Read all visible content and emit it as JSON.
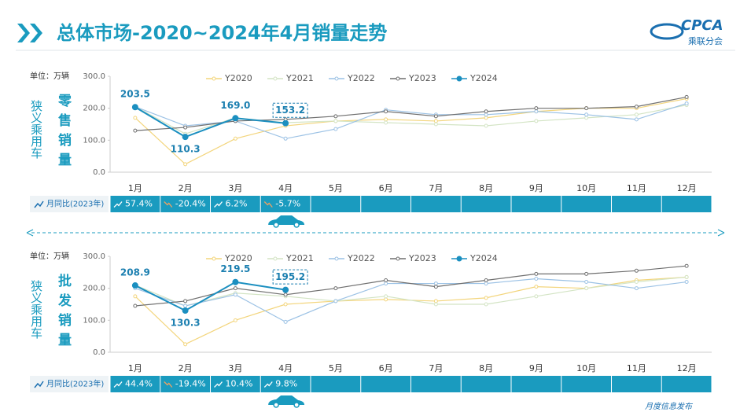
{
  "header": {
    "title": "总体市场-2020~2024年4月销量走势",
    "logo": "CPCA",
    "org": "乘联分会"
  },
  "footer": "月度信息发布",
  "chart_data": [
    {
      "type": "line",
      "unit": "单位：万辆",
      "segment": "狭义乘用车",
      "metric": "零售销量",
      "categories": [
        "1月",
        "2月",
        "3月",
        "4月",
        "5月",
        "6月",
        "7月",
        "8月",
        "9月",
        "10月",
        "11月",
        "12月"
      ],
      "ylim": [
        0,
        300
      ],
      "yticks": [
        {
          "value": 0,
          "label": "0.0"
        },
        {
          "value": 100,
          "label": "100.0"
        },
        {
          "value": 200,
          "label": "200.0"
        },
        {
          "value": 300,
          "label": "300.0"
        }
      ],
      "series": [
        {
          "name": "Y2020",
          "color": "#f3d57c",
          "values": [
            170,
            25,
            105,
            145,
            160,
            165,
            160,
            170,
            190,
            200,
            200,
            230
          ]
        },
        {
          "name": "Y2021",
          "color": "#d3e4c4",
          "values": [
            205,
            120,
            170,
            155,
            160,
            155,
            150,
            145,
            160,
            170,
            180,
            210
          ]
        },
        {
          "name": "Y2022",
          "color": "#9cc2e5",
          "values": [
            205,
            145,
            160,
            105,
            135,
            195,
            180,
            180,
            190,
            180,
            165,
            215
          ]
        },
        {
          "name": "Y2023",
          "color": "#6f6f6f",
          "values": [
            130,
            140,
            160,
            165,
            175,
            190,
            175,
            190,
            200,
            200,
            205,
            235
          ]
        },
        {
          "name": "Y2024",
          "color": "#1b8fc0",
          "values": [
            203.5,
            110.3,
            169.0,
            153.2,
            null,
            null,
            null,
            null,
            null,
            null,
            null,
            null
          ],
          "value_labels": [
            "203.5",
            "110.3",
            "169.0",
            "153.2",
            null,
            null,
            null,
            null,
            null,
            null,
            null,
            null
          ]
        }
      ],
      "yoy": {
        "label": "月同比(2023年)",
        "values": [
          57.4,
          -20.4,
          6.2,
          -5.7
        ],
        "value_labels": [
          "57.4%",
          "-20.4%",
          "6.2%",
          "-5.7%"
        ]
      }
    },
    {
      "type": "line",
      "unit": "单位：万辆",
      "segment": "狭义乘用车",
      "metric": "批发销量",
      "categories": [
        "1月",
        "2月",
        "3月",
        "4月",
        "5月",
        "6月",
        "7月",
        "8月",
        "9月",
        "10月",
        "11月",
        "12月"
      ],
      "ylim": [
        0,
        300
      ],
      "yticks": [
        {
          "value": 0,
          "label": "0.0"
        },
        {
          "value": 100,
          "label": "100.0"
        },
        {
          "value": 200,
          "label": "200.0"
        },
        {
          "value": 300,
          "label": "300.0"
        }
      ],
      "series": [
        {
          "name": "Y2020",
          "color": "#f3d57c",
          "values": [
            175,
            25,
            100,
            150,
            160,
            165,
            160,
            170,
            205,
            200,
            225,
            235
          ]
        },
        {
          "name": "Y2021",
          "color": "#d3e4c4",
          "values": [
            210,
            145,
            185,
            175,
            160,
            175,
            150,
            150,
            175,
            200,
            220,
            235
          ]
        },
        {
          "name": "Y2022",
          "color": "#9cc2e5",
          "values": [
            200,
            145,
            180,
            95,
            160,
            215,
            215,
            215,
            230,
            220,
            200,
            220
          ]
        },
        {
          "name": "Y2023",
          "color": "#6f6f6f",
          "values": [
            145,
            160,
            200,
            180,
            200,
            225,
            205,
            225,
            245,
            245,
            255,
            270
          ]
        },
        {
          "name": "Y2024",
          "color": "#1b8fc0",
          "values": [
            208.9,
            130.3,
            219.5,
            195.2,
            null,
            null,
            null,
            null,
            null,
            null,
            null,
            null
          ],
          "value_labels": [
            "208.9",
            "130.3",
            "219.5",
            "195.2",
            null,
            null,
            null,
            null,
            null,
            null,
            null,
            null
          ]
        }
      ],
      "yoy": {
        "label": "月同比(2023年)",
        "values": [
          44.4,
          -19.4,
          10.4,
          9.8
        ],
        "value_labels": [
          "44.4%",
          "-19.4%",
          "10.4%",
          "9.8%"
        ]
      }
    }
  ]
}
